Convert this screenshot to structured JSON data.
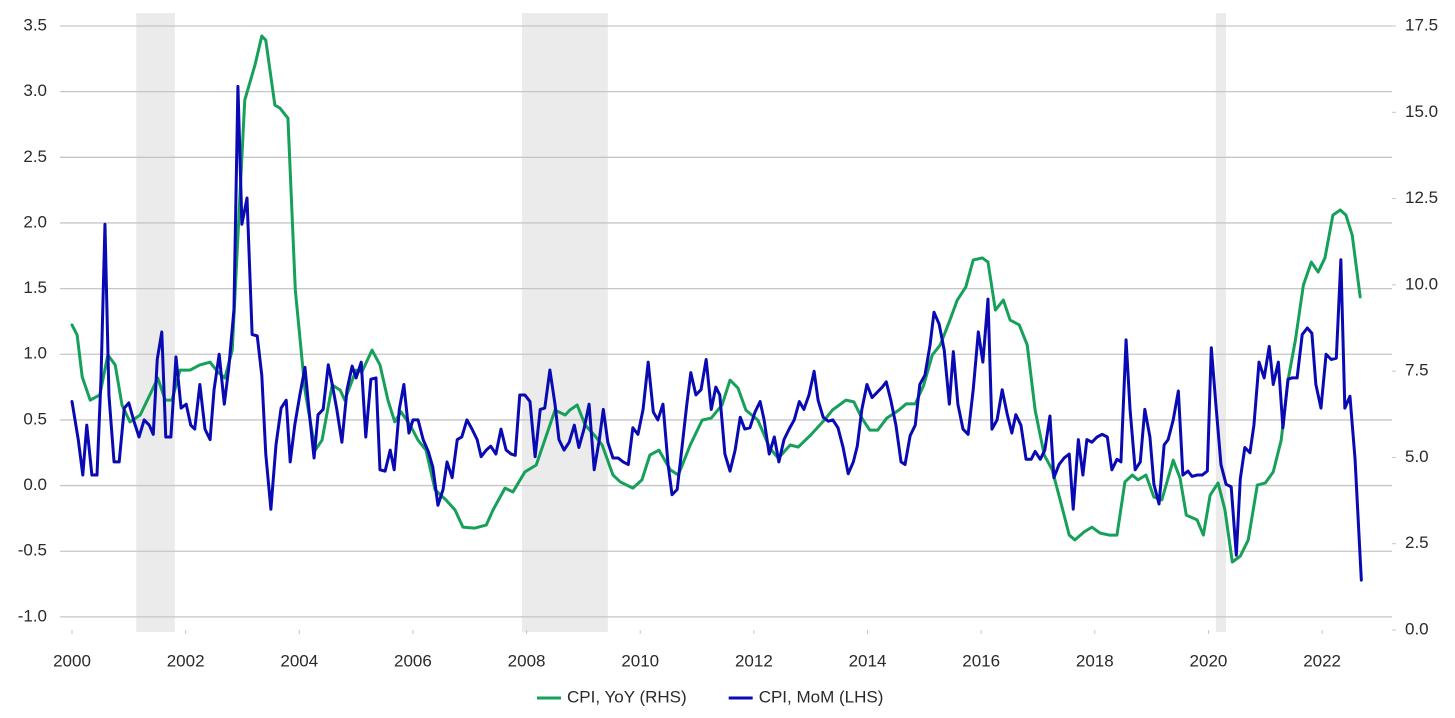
{
  "chart_data": {
    "type": "line",
    "xlim": [
      2000,
      2023.23
    ],
    "xticks": [
      2000,
      2002,
      2004,
      2006,
      2008,
      2010,
      2012,
      2014,
      2016,
      2018,
      2020,
      2022
    ],
    "ylim": [
      -1.1,
      3.5
    ],
    "yticks": [
      {
        "value": -1,
        "label": "-1.0"
      },
      -0.5,
      {
        "value": 0,
        "label": "0.0"
      },
      0.5,
      {
        "value": 1,
        "label": "1.0"
      },
      1.5,
      {
        "value": 2,
        "label": "2.0"
      },
      2.5,
      {
        "value": 3,
        "label": "3.0"
      },
      3.5
    ],
    "y2lim": [
      0,
      17.5
    ],
    "y2ticks": [
      {
        "value": 0,
        "label": "0.0"
      },
      2.5,
      {
        "value": 5,
        "label": "5.0"
      },
      7.5,
      {
        "value": 10,
        "label": "10.0"
      },
      12.5,
      {
        "value": 15,
        "label": "15.0"
      },
      17.5
    ],
    "grid": true,
    "legend": "bottom",
    "shaded_periods": [
      [
        2001.13,
        2001.81
      ],
      [
        2007.92,
        2009.43
      ],
      [
        2020.13,
        2020.31
      ]
    ],
    "shade_color": "#ebebeb",
    "series": [
      {
        "name": "CPI, YoY (RHS)",
        "color": "#16a05a",
        "axis": "y2",
        "x": [
          2000.0,
          2000.09,
          2000.18,
          2000.32,
          2000.49,
          2000.63,
          2000.76,
          2000.88,
          2001.02,
          2001.2,
          2001.37,
          2001.51,
          2001.64,
          2001.76,
          2001.9,
          2002.08,
          2002.25,
          2002.43,
          2002.57,
          2002.69,
          2002.82,
          2003.04,
          2003.22,
          2003.34,
          2003.41,
          2003.57,
          2003.66,
          2003.8,
          2003.93,
          2004.1,
          2004.28,
          2004.4,
          2004.58,
          2004.72,
          2004.8,
          2005.0,
          2005.1,
          2005.28,
          2005.42,
          2005.56,
          2005.68,
          2005.79,
          2005.95,
          2006.09,
          2006.23,
          2006.39,
          2006.58,
          2006.74,
          2006.88,
          2007.08,
          2007.29,
          2007.41,
          2007.62,
          2007.76,
          2007.97,
          2008.17,
          2008.32,
          2008.5,
          2008.68,
          2008.76,
          2008.89,
          2009.03,
          2009.19,
          2009.33,
          2009.52,
          2009.65,
          2009.87,
          2010.03,
          2010.17,
          2010.33,
          2010.53,
          2010.67,
          2010.88,
          2011.09,
          2011.25,
          2011.44,
          2011.58,
          2011.72,
          2011.86,
          2012.07,
          2012.28,
          2012.43,
          2012.64,
          2012.78,
          2013.0,
          2013.24,
          2013.38,
          2013.62,
          2013.76,
          2013.9,
          2014.04,
          2014.18,
          2014.34,
          2014.55,
          2014.68,
          2014.84,
          2014.99,
          2015.14,
          2015.28,
          2015.45,
          2015.58,
          2015.73,
          2015.86,
          2016.02,
          2016.12,
          2016.25,
          2016.39,
          2016.51,
          2016.67,
          2016.81,
          2016.95,
          2017.11,
          2017.25,
          2017.39,
          2017.55,
          2017.65,
          2017.81,
          2017.95,
          2018.09,
          2018.25,
          2018.39,
          2018.53,
          2018.66,
          2018.76,
          2018.9,
          2019.04,
          2019.18,
          2019.38,
          2019.5,
          2019.61,
          2019.8,
          2019.91,
          2020.03,
          2020.17,
          2020.29,
          2020.42,
          2020.56,
          2020.7,
          2020.86,
          2021.0,
          2021.14,
          2021.28,
          2021.4,
          2021.53,
          2021.67,
          2021.81,
          2021.93,
          2022.05,
          2022.19,
          2022.32,
          2022.42,
          2022.53,
          2022.67
        ],
        "values": [
          8.84,
          8.55,
          7.33,
          6.66,
          6.81,
          7.97,
          7.68,
          6.52,
          6.03,
          6.23,
          6.81,
          7.3,
          6.66,
          6.66,
          7.53,
          7.53,
          7.68,
          7.76,
          7.47,
          7.3,
          8.11,
          15.35,
          16.37,
          17.21,
          17.09,
          15.21,
          15.12,
          14.83,
          9.85,
          6.95,
          5.21,
          5.5,
          7.1,
          6.95,
          6.66,
          7.53,
          7.47,
          8.11,
          7.68,
          6.66,
          6.03,
          6.32,
          5.94,
          5.5,
          5.21,
          4.06,
          3.77,
          3.48,
          2.98,
          2.95,
          3.04,
          3.48,
          4.11,
          4.0,
          4.58,
          4.78,
          5.5,
          6.37,
          6.23,
          6.37,
          6.52,
          5.94,
          5.65,
          5.36,
          4.49,
          4.29,
          4.11,
          4.35,
          5.07,
          5.21,
          4.64,
          4.49,
          5.36,
          6.08,
          6.14,
          6.52,
          7.24,
          7.01,
          6.37,
          6.08,
          5.27,
          4.98,
          5.36,
          5.3,
          5.65,
          6.08,
          6.37,
          6.66,
          6.61,
          6.14,
          5.79,
          5.79,
          6.14,
          6.37,
          6.55,
          6.55,
          7.1,
          7.97,
          8.26,
          8.98,
          9.56,
          9.94,
          10.72,
          10.78,
          10.66,
          9.27,
          9.56,
          8.98,
          8.84,
          8.26,
          6.37,
          5.07,
          4.64,
          3.77,
          2.75,
          2.61,
          2.84,
          2.98,
          2.81,
          2.75,
          2.75,
          4.29,
          4.49,
          4.35,
          4.49,
          3.85,
          3.77,
          4.92,
          4.4,
          3.33,
          3.19,
          2.75,
          3.91,
          4.26,
          3.48,
          1.97,
          2.14,
          2.61,
          4.2,
          4.26,
          4.58,
          5.5,
          7.24,
          8.4,
          9.99,
          10.66,
          10.37,
          10.78,
          12.02,
          12.17,
          12.02,
          11.44,
          9.65
        ]
      },
      {
        "name": "CPI, MoM (LHS)",
        "color": "#0a0ab4",
        "axis": "y",
        "x": [
          2000.0,
          2000.11,
          2000.19,
          2000.26,
          2000.35,
          2000.44,
          2000.51,
          2000.58,
          2000.65,
          2000.74,
          2000.83,
          2000.92,
          2001.0,
          2001.09,
          2001.18,
          2001.27,
          2001.36,
          2001.43,
          2001.5,
          2001.58,
          2001.65,
          2001.74,
          2001.83,
          2001.92,
          2002.01,
          2002.09,
          2002.16,
          2002.25,
          2002.34,
          2002.43,
          2002.5,
          2002.59,
          2002.68,
          2002.76,
          2002.85,
          2002.92,
          2002.99,
          2003.08,
          2003.17,
          2003.26,
          2003.34,
          2003.41,
          2003.5,
          2003.59,
          2003.68,
          2003.77,
          2003.84,
          2003.92,
          2004.01,
          2004.1,
          2004.17,
          2004.26,
          2004.33,
          2004.42,
          2004.51,
          2004.58,
          2004.66,
          2004.75,
          2004.84,
          2004.93,
          2005.0,
          2005.09,
          2005.17,
          2005.26,
          2005.35,
          2005.42,
          2005.51,
          2005.6,
          2005.67,
          2005.76,
          2005.84,
          2005.93,
          2006.0,
          2006.09,
          2006.18,
          2006.27,
          2006.35,
          2006.44,
          2006.53,
          2006.6,
          2006.69,
          2006.78,
          2006.86,
          2006.95,
          2007.04,
          2007.13,
          2007.2,
          2007.29,
          2007.37,
          2007.46,
          2007.55,
          2007.64,
          2007.73,
          2007.8,
          2007.88,
          2007.97,
          2008.06,
          2008.15,
          2008.24,
          2008.32,
          2008.41,
          2008.5,
          2008.57,
          2008.66,
          2008.75,
          2008.84,
          2008.92,
          2009.01,
          2009.1,
          2009.19,
          2009.28,
          2009.35,
          2009.43,
          2009.52,
          2009.61,
          2009.7,
          2009.79,
          2009.87,
          2009.96,
          2010.05,
          2010.14,
          2010.23,
          2010.31,
          2010.4,
          2010.49,
          2010.56,
          2010.65,
          2010.74,
          2010.82,
          2010.89,
          2010.98,
          2011.07,
          2011.16,
          2011.25,
          2011.33,
          2011.4,
          2011.49,
          2011.58,
          2011.67,
          2011.76,
          2011.84,
          2011.93,
          2012.02,
          2012.11,
          2012.18,
          2012.27,
          2012.36,
          2012.44,
          2012.53,
          2012.62,
          2012.71,
          2012.8,
          2012.88,
          2012.97,
          2013.06,
          2013.13,
          2013.22,
          2013.31,
          2013.39,
          2013.48,
          2013.57,
          2013.66,
          2013.75,
          2013.82,
          2013.9,
          2013.99,
          2014.08,
          2014.17,
          2014.26,
          2014.33,
          2014.41,
          2014.5,
          2014.59,
          2014.66,
          2014.75,
          2014.84,
          2014.92,
          2015.01,
          2015.1,
          2015.17,
          2015.26,
          2015.35,
          2015.44,
          2015.51,
          2015.59,
          2015.68,
          2015.77,
          2015.86,
          2015.95,
          2016.03,
          2016.12,
          2016.19,
          2016.28,
          2016.37,
          2016.46,
          2016.54,
          2016.61,
          2016.7,
          2016.79,
          2016.88,
          2016.95,
          2017.04,
          2017.12,
          2017.21,
          2017.28,
          2017.37,
          2017.46,
          2017.55,
          2017.62,
          2017.71,
          2017.79,
          2017.86,
          2017.95,
          2018.04,
          2018.13,
          2018.22,
          2018.3,
          2018.39,
          2018.46,
          2018.55,
          2018.62,
          2018.71,
          2018.8,
          2018.88,
          2018.97,
          2019.04,
          2019.13,
          2019.22,
          2019.29,
          2019.38,
          2019.47,
          2019.55,
          2019.64,
          2019.71,
          2019.8,
          2019.89,
          2019.98,
          2020.05,
          2020.13,
          2020.22,
          2020.31,
          2020.4,
          2020.49,
          2020.56,
          2020.64,
          2020.73,
          2020.8,
          2020.89,
          2020.98,
          2021.07,
          2021.14,
          2021.23,
          2021.31,
          2021.4,
          2021.47,
          2021.56,
          2021.65,
          2021.74,
          2021.82,
          2021.89,
          2021.98,
          2022.07,
          2022.16,
          2022.25,
          2022.33,
          2022.4,
          2022.49,
          2022.58,
          2022.69
        ],
        "values": [
          0.64,
          0.35,
          0.08,
          0.46,
          0.08,
          0.08,
          0.81,
          1.99,
          0.69,
          0.18,
          0.18,
          0.59,
          0.63,
          0.49,
          0.37,
          0.5,
          0.46,
          0.39,
          0.96,
          1.17,
          0.37,
          0.37,
          0.98,
          0.59,
          0.62,
          0.46,
          0.43,
          0.77,
          0.43,
          0.35,
          0.73,
          1.0,
          0.62,
          0.9,
          1.34,
          3.04,
          1.99,
          2.19,
          1.15,
          1.14,
          0.84,
          0.24,
          -0.18,
          0.31,
          0.59,
          0.65,
          0.18,
          0.46,
          0.69,
          0.9,
          0.58,
          0.21,
          0.54,
          0.58,
          0.92,
          0.77,
          0.58,
          0.33,
          0.73,
          0.91,
          0.82,
          0.94,
          0.37,
          0.81,
          0.82,
          0.12,
          0.11,
          0.27,
          0.12,
          0.58,
          0.77,
          0.4,
          0.5,
          0.5,
          0.35,
          0.26,
          0.14,
          -0.15,
          -0.03,
          0.18,
          0.06,
          0.35,
          0.37,
          0.5,
          0.43,
          0.35,
          0.22,
          0.27,
          0.3,
          0.24,
          0.43,
          0.27,
          0.24,
          0.23,
          0.69,
          0.69,
          0.64,
          0.22,
          0.58,
          0.59,
          0.88,
          0.62,
          0.35,
          0.27,
          0.33,
          0.46,
          0.29,
          0.43,
          0.62,
          0.12,
          0.35,
          0.58,
          0.33,
          0.21,
          0.21,
          0.18,
          0.16,
          0.44,
          0.39,
          0.58,
          0.94,
          0.56,
          0.5,
          0.62,
          0.16,
          -0.07,
          -0.03,
          0.31,
          0.62,
          0.86,
          0.69,
          0.73,
          0.96,
          0.58,
          0.75,
          0.69,
          0.24,
          0.11,
          0.27,
          0.52,
          0.43,
          0.44,
          0.56,
          0.64,
          0.5,
          0.24,
          0.37,
          0.18,
          0.35,
          0.43,
          0.5,
          0.64,
          0.58,
          0.69,
          0.87,
          0.65,
          0.52,
          0.49,
          0.5,
          0.44,
          0.29,
          0.09,
          0.18,
          0.3,
          0.58,
          0.77,
          0.67,
          0.71,
          0.75,
          0.79,
          0.65,
          0.46,
          0.18,
          0.16,
          0.38,
          0.46,
          0.77,
          0.84,
          1.07,
          1.32,
          1.23,
          1.03,
          0.62,
          1.02,
          0.62,
          0.43,
          0.39,
          0.73,
          1.17,
          0.94,
          1.42,
          0.43,
          0.5,
          0.73,
          0.54,
          0.4,
          0.54,
          0.46,
          0.2,
          0.2,
          0.26,
          0.2,
          0.27,
          0.53,
          0.06,
          0.16,
          0.21,
          0.24,
          -0.18,
          0.35,
          0.08,
          0.35,
          0.33,
          0.37,
          0.39,
          0.37,
          0.12,
          0.2,
          0.18,
          1.11,
          0.58,
          0.12,
          0.18,
          0.58,
          0.37,
          0.01,
          -0.14,
          0.31,
          0.35,
          0.5,
          0.72,
          0.08,
          0.11,
          0.07,
          0.08,
          0.08,
          0.11,
          1.05,
          0.62,
          0.16,
          0.01,
          -0.01,
          -0.53,
          0.05,
          0.29,
          0.25,
          0.46,
          0.94,
          0.82,
          1.06,
          0.77,
          0.94,
          0.44,
          0.81,
          0.82,
          0.82,
          1.15,
          1.2,
          1.16,
          0.77,
          0.59,
          1.0,
          0.96,
          0.97,
          1.72,
          0.59,
          0.68,
          0.2,
          -0.72
        ]
      }
    ]
  }
}
